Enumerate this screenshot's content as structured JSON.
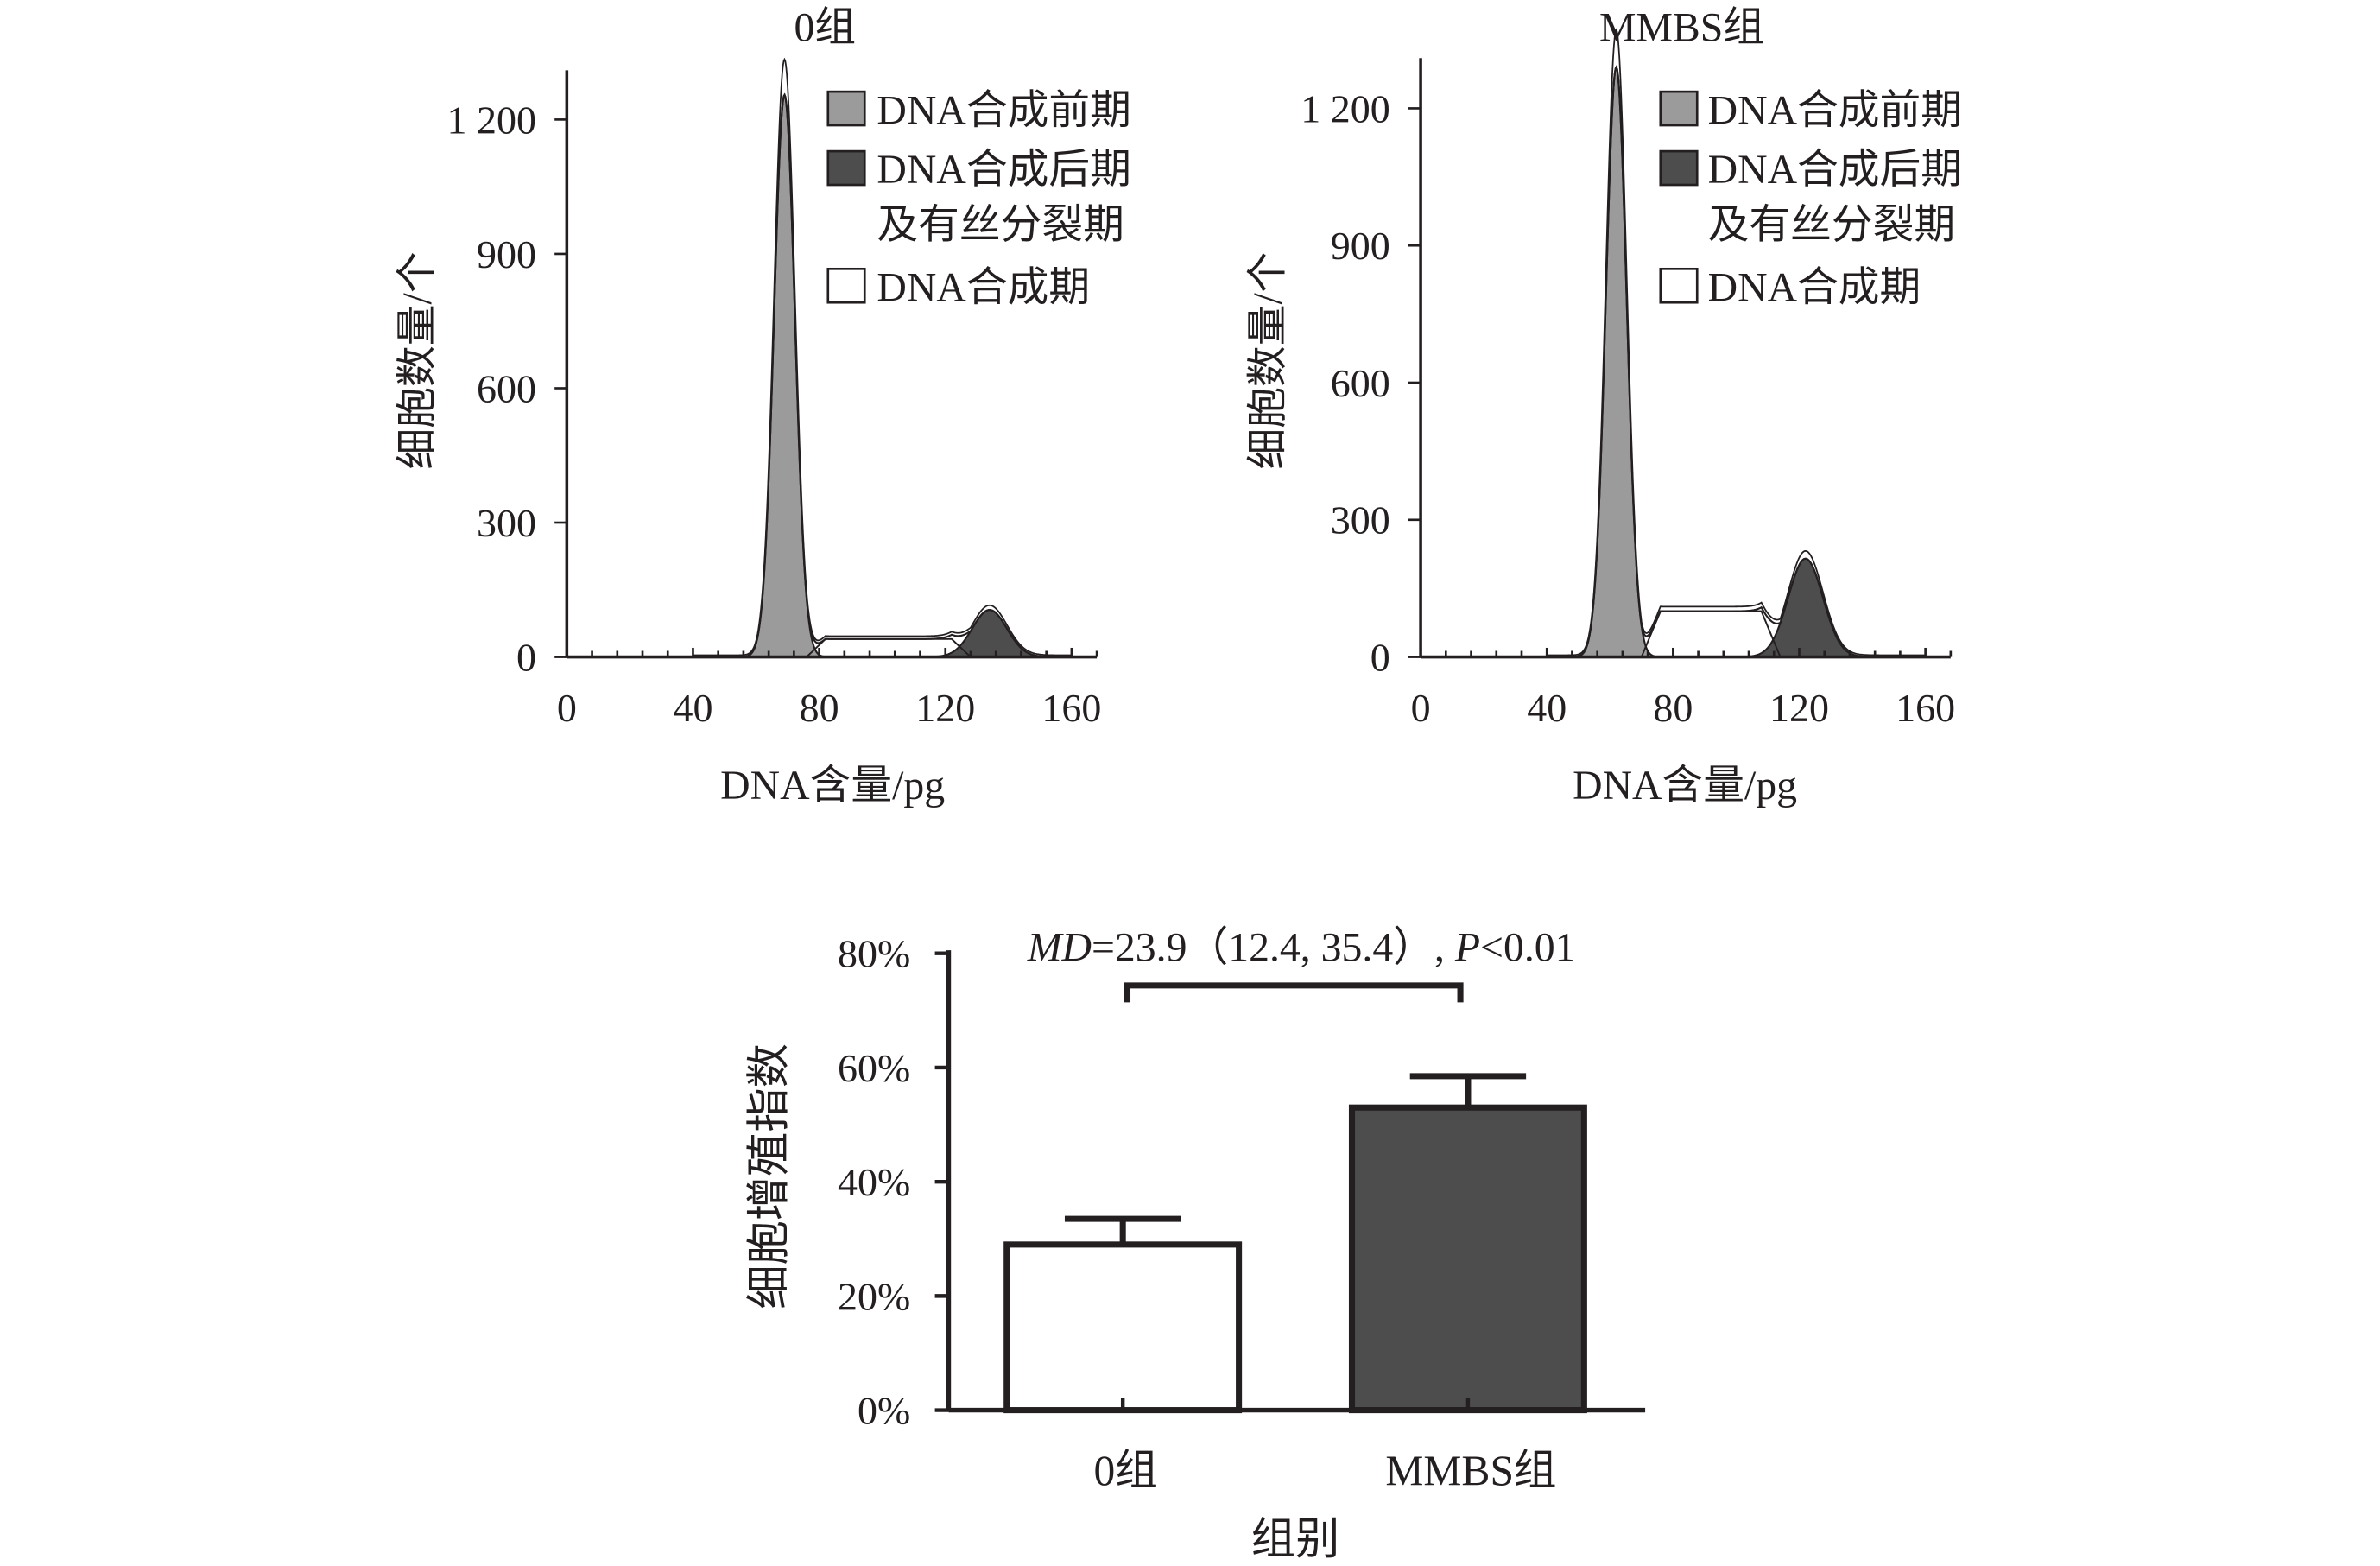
{
  "chart_data": [
    {
      "type": "area",
      "title": "0组",
      "xlabel": "DNA含量/pg",
      "ylabel": "细胞数量/个",
      "xlim": [
        0,
        168
      ],
      "ylim": [
        0,
        1310
      ],
      "xticks": [
        0,
        40,
        80,
        120,
        160
      ],
      "xtick_labels": [
        "0",
        "40",
        "80",
        "120",
        "160"
      ],
      "yticks": [
        0,
        300,
        600,
        900,
        1200
      ],
      "ytick_labels": [
        "0",
        "300",
        "600",
        "900",
        "1 200"
      ],
      "legend_position": "top-right",
      "legend": [
        "DNA合成前期",
        "DNA合成后期",
        "及有丝分裂期",
        "DNA合成期"
      ],
      "series": [
        {
          "name": "DNA合成前期",
          "fill": "#9b9b9b",
          "peak_x": 69,
          "peak_y": 1255
        },
        {
          "name": "DNA合成后期及有丝分裂期",
          "fill": "#4d4d4d",
          "peak_x": 134,
          "peak_y": 105
        },
        {
          "name": "DNA合成期",
          "fill": "#ffffff",
          "x_range": [
            76,
            128
          ],
          "y": 40
        }
      ]
    },
    {
      "type": "area",
      "title": "MMBS组",
      "xlabel": "DNA含量/pg",
      "ylabel": "细胞数量/个",
      "xlim": [
        0,
        168
      ],
      "ylim": [
        0,
        1310
      ],
      "xticks": [
        0,
        40,
        80,
        120,
        160
      ],
      "xtick_labels": [
        "0",
        "40",
        "80",
        "120",
        "160"
      ],
      "yticks": [
        0,
        300,
        600,
        900,
        1200
      ],
      "ytick_labels": [
        "0",
        "300",
        "600",
        "900",
        "1 200"
      ],
      "legend_position": "top-right",
      "legend": [
        "DNA合成前期",
        "DNA合成后期",
        "及有丝分裂期",
        "DNA合成期"
      ],
      "series": [
        {
          "name": "DNA合成前期",
          "fill": "#9b9b9b",
          "peak_x": 62,
          "peak_y": 1290
        },
        {
          "name": "DNA合成后期及有丝分裂期",
          "fill": "#4d4d4d",
          "peak_x": 122,
          "peak_y": 215
        },
        {
          "name": "DNA合成期",
          "fill": "#ffffff",
          "x_range": [
            70,
            114
          ],
          "y": 100
        }
      ]
    },
    {
      "type": "bar",
      "categories": [
        "0组",
        "MMBS组"
      ],
      "values": [
        29,
        53
      ],
      "errors": [
        4.5,
        5.5
      ],
      "colors": [
        "#ffffff",
        "#4d4d4d"
      ],
      "xlabel": "组别",
      "ylabel": "细胞增殖指数",
      "ylim": [
        0,
        80
      ],
      "yticks": [
        0,
        20,
        40,
        60,
        80
      ],
      "ytick_labels": [
        "0%",
        "20%",
        "40%",
        "60%",
        "80%"
      ],
      "annotation": {
        "md": "MD",
        "main": "=23.9（12.4, 35.4）, ",
        "p": "P",
        "p_rest": "<0.01"
      }
    }
  ]
}
